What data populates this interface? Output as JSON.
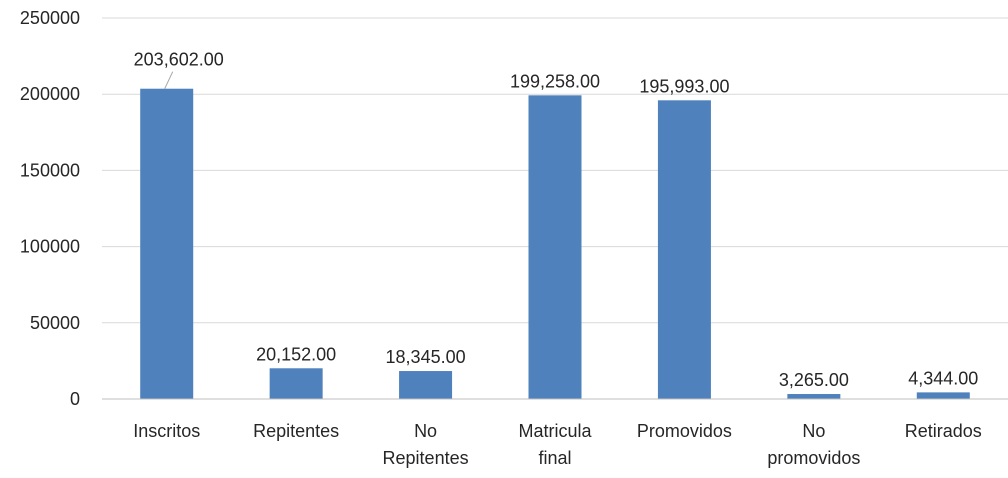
{
  "chart_data": {
    "type": "bar",
    "categories": [
      [
        "Inscritos"
      ],
      [
        "Repitentes"
      ],
      [
        "No",
        "Repitentes"
      ],
      [
        "Matricula",
        "final"
      ],
      [
        "Promovidos"
      ],
      [
        "No",
        "promovidos"
      ],
      [
        "Retirados"
      ]
    ],
    "values": [
      203602,
      20152,
      18345,
      199258,
      195993,
      3265,
      4344
    ],
    "data_labels": [
      "203,602.00",
      "20,152.00",
      "18,345.00",
      "199,258.00",
      "195,993.00",
      "3,265.00",
      "4,344.00"
    ],
    "ylim": [
      0,
      250000
    ],
    "yticks": [
      0,
      50000,
      100000,
      150000,
      200000,
      250000
    ],
    "ytick_labels": [
      "0",
      "50000",
      "100000",
      "150000",
      "200000",
      "250000"
    ],
    "grid": true,
    "legend": "none",
    "colors": {
      "bar": "#4F81BD",
      "grid": "#D9D9D9",
      "axis": "#BFBFBF",
      "text": "#262626",
      "leader": "#A6A6A6"
    }
  }
}
